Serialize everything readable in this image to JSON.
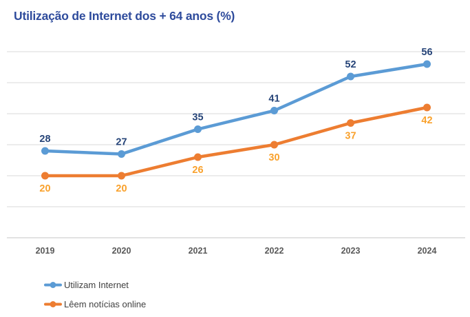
{
  "chart_data": {
    "type": "line",
    "title": "Utilização de Internet dos + 64 anos (%)",
    "categories": [
      "2019",
      "2020",
      "2021",
      "2022",
      "2023",
      "2024"
    ],
    "series": [
      {
        "name": "Utilizam Internet",
        "values": [
          28,
          27,
          35,
          41,
          52,
          56
        ],
        "color": "#5B9BD5",
        "label_color": "#264478",
        "label_position": "above"
      },
      {
        "name": "Lêem notícias online",
        "values": [
          20,
          20,
          26,
          30,
          37,
          42
        ],
        "color": "#ED7D31",
        "label_color": "#F9A12C",
        "label_position": "below"
      }
    ],
    "xlabel": "",
    "ylabel": "",
    "ylim": [
      0,
      60
    ],
    "grid_step": 10,
    "grid": true,
    "data_labels": true,
    "y_axis_labels_visible": false,
    "legend_position": "bottom-left"
  },
  "colors": {
    "background": "#FFFFFF",
    "title": "#2E4B9C",
    "gridline": "#D9D9D9",
    "axis_line": "#C6C6C6",
    "x_tick_label": "#595959",
    "legend_text": "#404040"
  }
}
